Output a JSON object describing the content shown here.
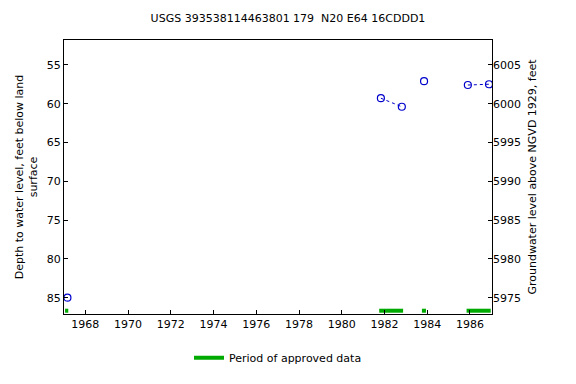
{
  "chart_data": {
    "type": "scatter",
    "title": "USGS 393538114463801 179  N20 E64 16CDDD1",
    "ylabel": [
      "Depth to water level, feet below land",
      "surface"
    ],
    "y2label": "Groundwater level above NGVD 1929, feet",
    "x": [
      1967.16,
      1967.16,
      1981.83,
      1982.81,
      1982.81,
      1983.85,
      1983.85,
      1985.9,
      1986.89
    ],
    "values": [
      85.0,
      null,
      59.3,
      60.4,
      null,
      57.1,
      null,
      57.6,
      57.5
    ],
    "color": "#0000cc",
    "marker": "open circle",
    "line_style": "dotted",
    "xlim": [
      1967.0,
      1987.03
    ],
    "xticks": [
      1968,
      1970,
      1972,
      1974,
      1976,
      1978,
      1980,
      1982,
      1984,
      1986
    ],
    "ylim": [
      87.1,
      51.8
    ],
    "yticks": [
      55,
      60,
      65,
      70,
      75,
      80,
      85
    ],
    "y2lim": [
      5972.9,
      6008.2
    ],
    "y2ticks": [
      5975,
      5980,
      5985,
      5990,
      5995,
      6000,
      6005
    ],
    "approved_periods": {
      "name": "Period of approved data",
      "color": "#00aa00",
      "ranges": [
        [
          1967.05,
          1967.2
        ],
        [
          1981.75,
          1982.87
        ],
        [
          1983.75,
          1983.94
        ],
        [
          1985.84,
          1986.97
        ]
      ]
    },
    "grid": false,
    "legend": "bottom"
  }
}
